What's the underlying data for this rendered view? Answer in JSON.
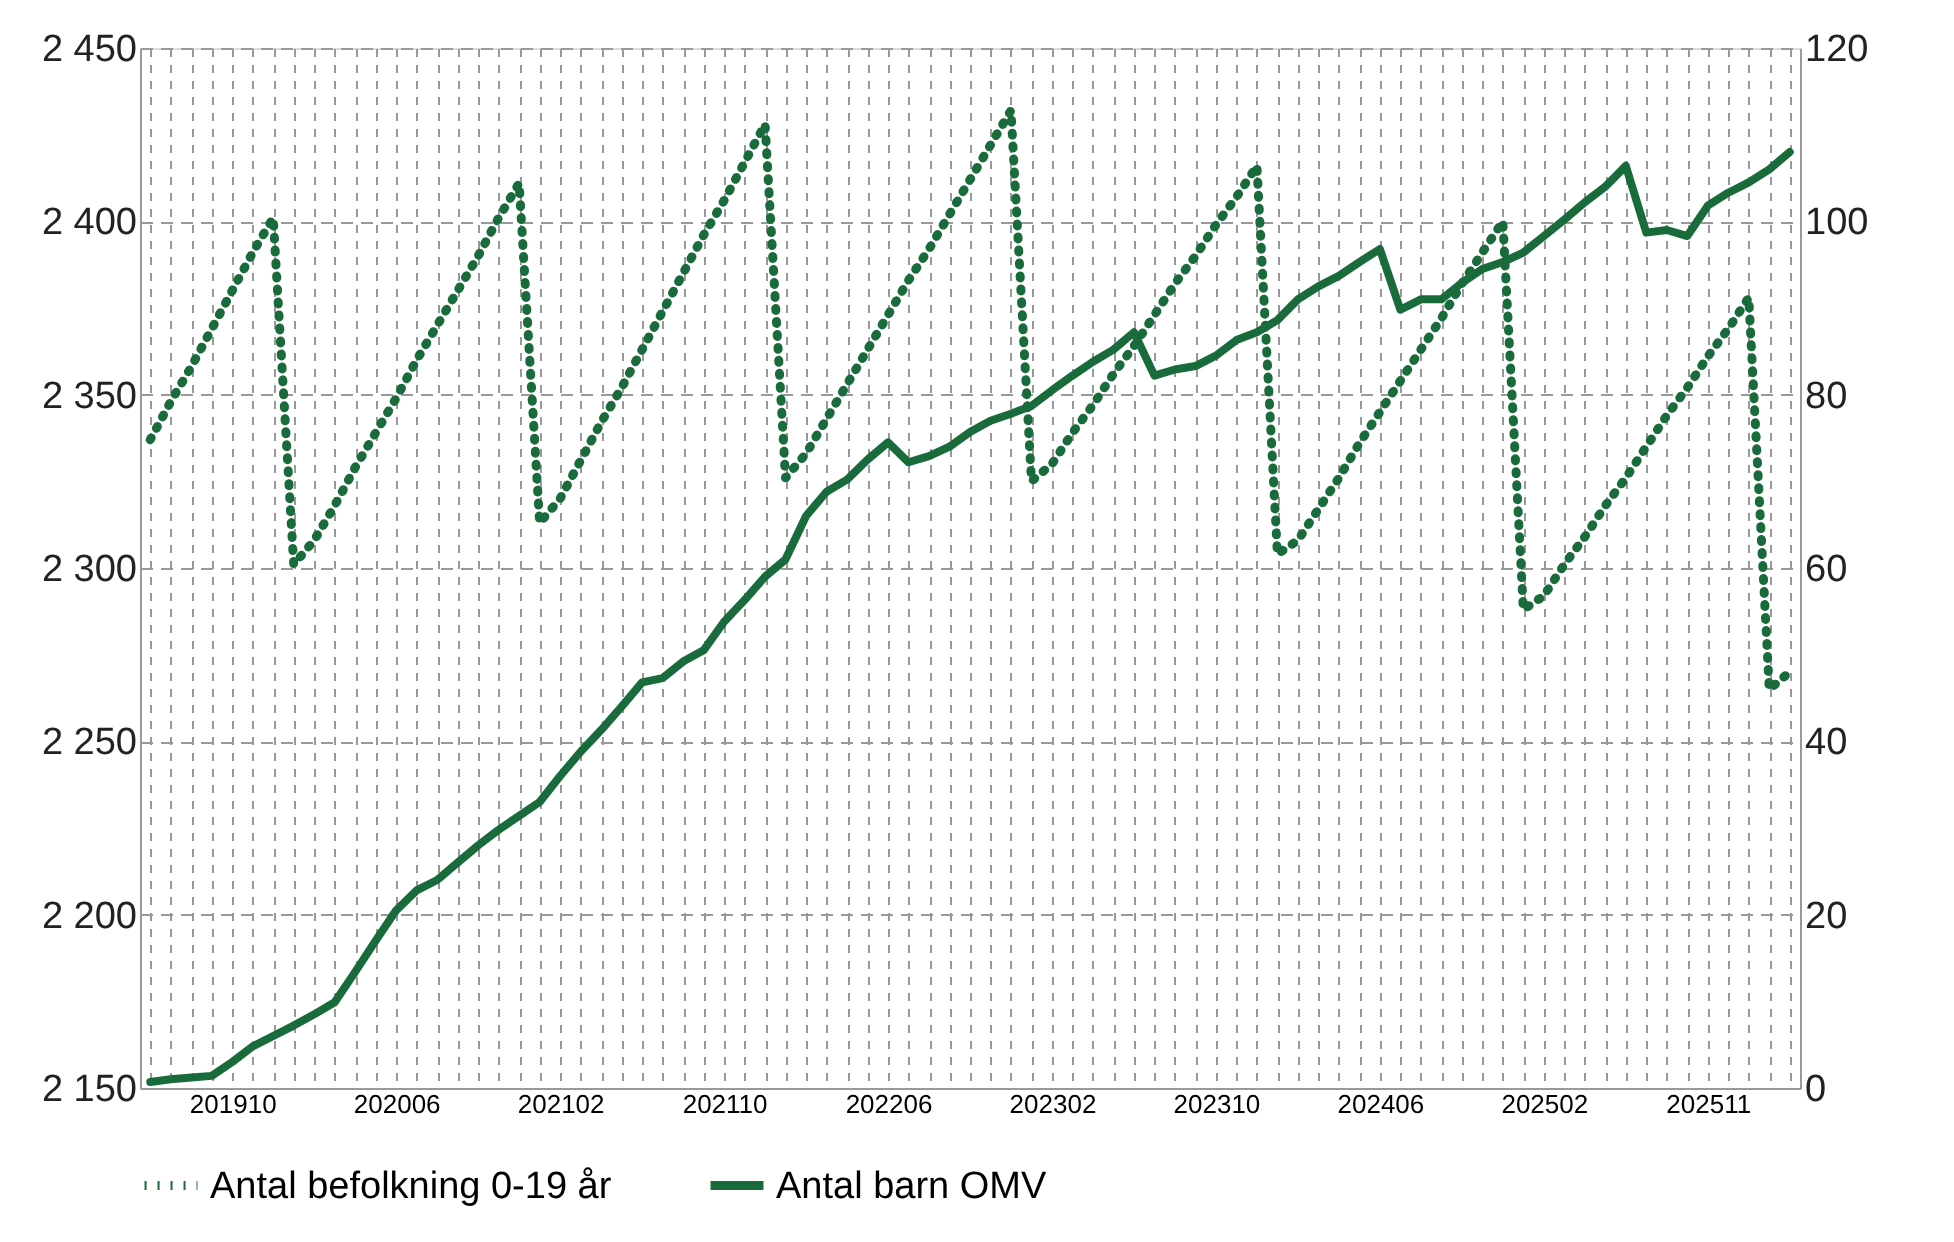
{
  "chart_data": {
    "type": "line",
    "categories": [
      null,
      null,
      null,
      null,
      "201910",
      null,
      null,
      null,
      null,
      null,
      null,
      null,
      "202006",
      null,
      null,
      null,
      null,
      null,
      null,
      null,
      "202102",
      null,
      null,
      null,
      null,
      null,
      null,
      null,
      "202110",
      null,
      null,
      null,
      null,
      null,
      null,
      null,
      "202206",
      null,
      null,
      null,
      null,
      null,
      null,
      null,
      "202302",
      null,
      null,
      null,
      null,
      null,
      null,
      null,
      "202310",
      null,
      null,
      null,
      null,
      null,
      null,
      null,
      "202406",
      null,
      null,
      null,
      null,
      null,
      null,
      null,
      "202502",
      null,
      null,
      null,
      null,
      null,
      null,
      null,
      "202511",
      null,
      null,
      null,
      null
    ],
    "series": [
      {
        "name": "Antal befolkning 0-19 år",
        "color": "#1a6b3c",
        "line_style": "dotted",
        "values": [
          2337,
          2348,
          2358,
          2369,
          2380,
          2391,
          2401,
          2301,
          2308,
          2318,
          2329,
          2339,
          2349,
          2360,
          2370,
          2380,
          2390,
          2401,
          2411,
          2313,
          2320,
          2331,
          2342,
          2352,
          2363,
          2374,
          2385,
          2396,
          2406,
          2417,
          2428,
          2326,
          2333,
          2343,
          2353,
          2363,
          2373,
          2383,
          2392,
          2402,
          2412,
          2422,
          2432,
          2325,
          2330,
          2339,
          2347,
          2356,
          2364,
          2373,
          2382,
          2390,
          2399,
          2407,
          2416,
          2304,
          2308,
          2317,
          2326,
          2336,
          2345,
          2354,
          2363,
          2372,
          2382,
          2391,
          2400,
          2288,
          2292,
          2301,
          2309,
          2318,
          2326,
          2335,
          2344,
          2352,
          2361,
          2369,
          2378,
          2265,
          2270
        ]
      },
      {
        "name": "Antal barn OMV",
        "color": "#1a6b3c",
        "line_style": "solid",
        "axis": "y2",
        "values": [
          0.7,
          1,
          1.2,
          1.4,
          3,
          4.8,
          6,
          7.2,
          8.5,
          9.9,
          13.4,
          17,
          20.5,
          22.8,
          24,
          26,
          28,
          29.8,
          31.4,
          33,
          36,
          38.8,
          41.3,
          44,
          46.8,
          47.3,
          49.2,
          50.5,
          53.8,
          56.3,
          59,
          61,
          66,
          68.8,
          70.2,
          72.5,
          74.5,
          72.2,
          72.9,
          74,
          75.7,
          77,
          77.8,
          78.7,
          80.5,
          82.2,
          83.8,
          85.2,
          87.2,
          82.2,
          82.9,
          83.3,
          84.5,
          86.3,
          87.2,
          88.6,
          91,
          92.5,
          93.7,
          95.3,
          96.8,
          89.8,
          91,
          91,
          92.9,
          94.5,
          95.3,
          96.4,
          98.3,
          100.2,
          102.2,
          104,
          106.4,
          98.7,
          99,
          98.3,
          101.8,
          103.3,
          104.5,
          106,
          108
        ]
      }
    ],
    "ylim": [
      2150,
      2450
    ],
    "yticks": [
      {
        "value": 2150,
        "label": "2 150"
      },
      {
        "value": 2200,
        "label": "2 200"
      },
      {
        "value": 2250,
        "label": "2 250"
      },
      {
        "value": 2300,
        "label": "2 300"
      },
      {
        "value": 2350,
        "label": "2 350"
      },
      {
        "value": 2400,
        "label": "2 400"
      },
      {
        "value": 2450,
        "label": "2 450"
      }
    ],
    "y2lim": [
      0,
      120
    ],
    "y2ticks": [
      0,
      20,
      40,
      60,
      80,
      100,
      120
    ],
    "grid": true,
    "legend": "bottom"
  }
}
